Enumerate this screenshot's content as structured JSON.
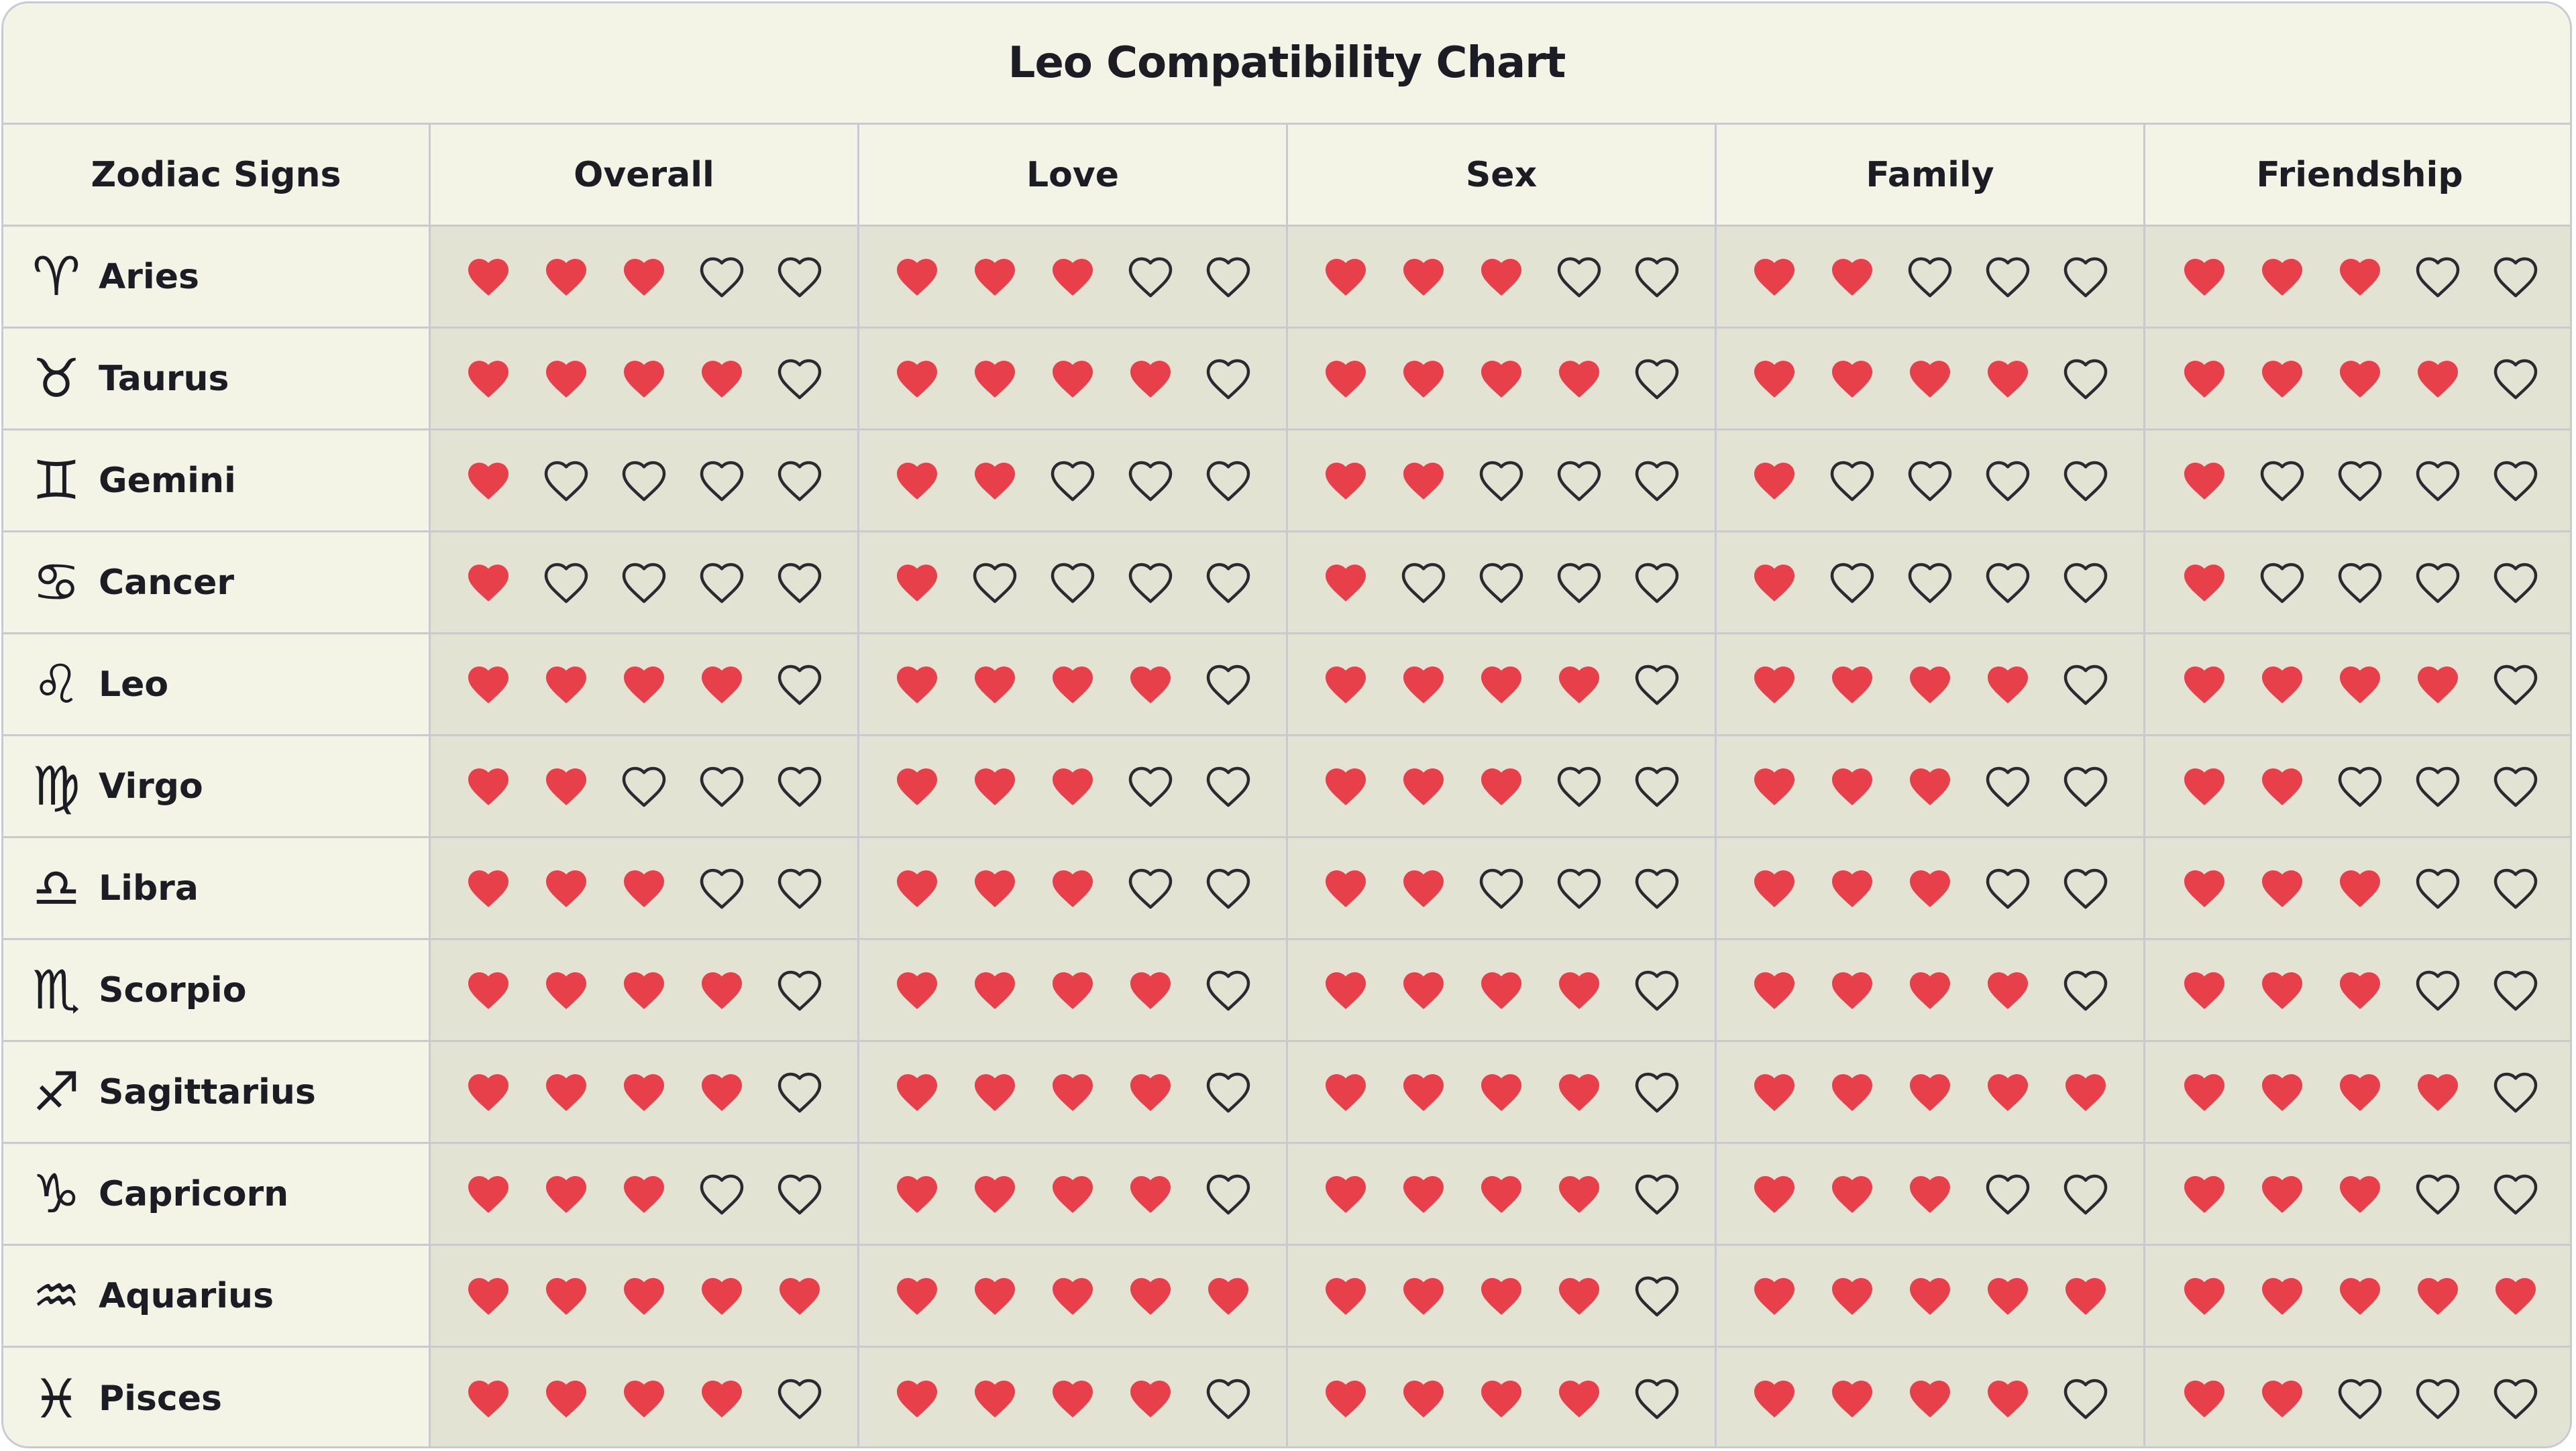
{
  "chart_data": {
    "type": "table",
    "title": "Leo Compatibility Chart",
    "columns": [
      "Zodiac Signs",
      "Overall",
      "Love",
      "Sex",
      "Family",
      "Friendship"
    ],
    "max_rating": 5,
    "rows": [
      {
        "sign": "Aries",
        "glyph": "♈",
        "ratings": [
          3,
          3,
          3,
          2,
          3
        ]
      },
      {
        "sign": "Taurus",
        "glyph": "♉",
        "ratings": [
          4,
          4,
          4,
          4,
          4
        ]
      },
      {
        "sign": "Gemini",
        "glyph": "♊",
        "ratings": [
          1,
          2,
          2,
          1,
          1
        ]
      },
      {
        "sign": "Cancer",
        "glyph": "♋",
        "ratings": [
          1,
          1,
          1,
          1,
          1
        ]
      },
      {
        "sign": "Leo",
        "glyph": "♌",
        "ratings": [
          4,
          4,
          4,
          4,
          4
        ]
      },
      {
        "sign": "Virgo",
        "glyph": "♍",
        "ratings": [
          2,
          3,
          3,
          3,
          2
        ]
      },
      {
        "sign": "Libra",
        "glyph": "♎",
        "ratings": [
          3,
          3,
          2,
          3,
          3
        ]
      },
      {
        "sign": "Scorpio",
        "glyph": "♏",
        "ratings": [
          4,
          4,
          4,
          4,
          3
        ]
      },
      {
        "sign": "Sagittarius",
        "glyph": "♐",
        "ratings": [
          4,
          4,
          4,
          5,
          4
        ]
      },
      {
        "sign": "Capricorn",
        "glyph": "♑",
        "ratings": [
          3,
          4,
          4,
          3,
          3
        ]
      },
      {
        "sign": "Aquarius",
        "glyph": "♒",
        "ratings": [
          5,
          5,
          4,
          5,
          5
        ]
      },
      {
        "sign": "Pisces",
        "glyph": "♓",
        "ratings": [
          4,
          4,
          4,
          4,
          2
        ]
      }
    ]
  },
  "colors": {
    "filled_heart": "#e8404a",
    "empty_heart_outline": "#2a2a30"
  },
  "icons": {
    "filled": "filled-heart-icon",
    "empty": "empty-heart-icon"
  }
}
